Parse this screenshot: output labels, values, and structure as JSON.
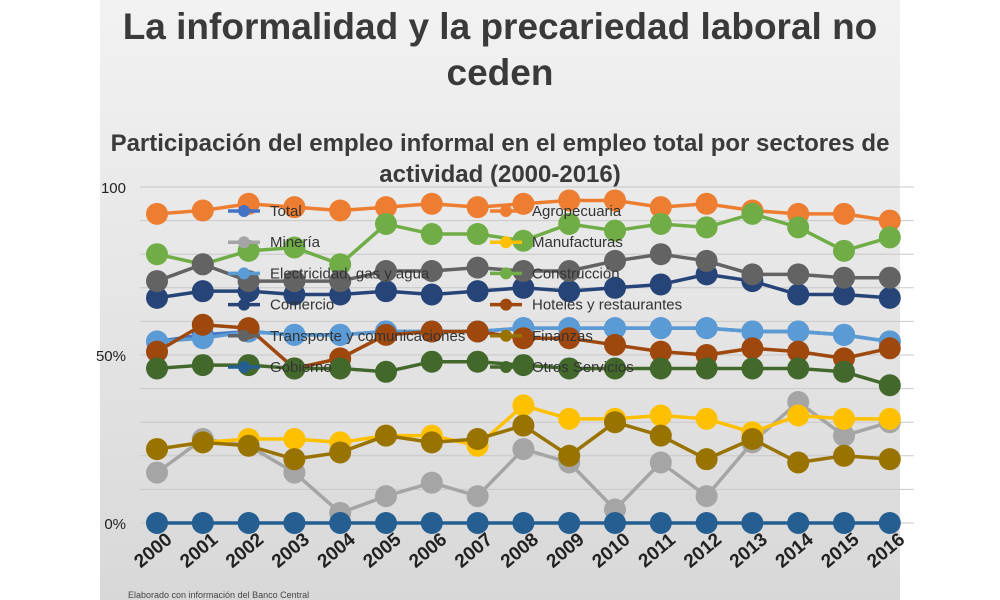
{
  "title_main": "La informalidad y la precariedad laboral no ceden",
  "chart_data": {
    "type": "line",
    "title": "Participación del empleo informal en el empleo total por sectores de actividad (2000-2016)",
    "xlabel": "",
    "ylabel": "",
    "ylim": [
      0,
      100
    ],
    "yticks": [
      "0%",
      "50%",
      "100"
    ],
    "legend": "top-center, two columns",
    "grid": true,
    "x": [
      "2000",
      "2001",
      "2002",
      "2003",
      "2004",
      "2005",
      "2006",
      "2007",
      "2008",
      "2009",
      "2010",
      "2011",
      "2012",
      "2013",
      "2014",
      "2015",
      "2016"
    ],
    "series": [
      {
        "name": "Total",
        "color": "#4472c4",
        "values": [
          54,
          56,
          57,
          56,
          56,
          57,
          57,
          57,
          58,
          58,
          58,
          58,
          58,
          57,
          57,
          56,
          54
        ]
      },
      {
        "name": "Agropecuaria",
        "color": "#ed7d31",
        "values": [
          92,
          93,
          95,
          94,
          93,
          94,
          95,
          94,
          95,
          96,
          96,
          94,
          95,
          93,
          92,
          92,
          90
        ]
      },
      {
        "name": "Minería",
        "color": "#a5a5a5",
        "values": [
          15,
          25,
          23,
          15,
          3,
          8,
          12,
          8,
          22,
          18,
          4,
          18,
          8,
          24,
          36,
          26,
          30
        ]
      },
      {
        "name": "Manufacturas",
        "color": "#ffc000",
        "values": [
          22,
          24,
          25,
          25,
          24,
          26,
          26,
          23,
          35,
          31,
          31,
          32,
          31,
          27,
          32,
          31,
          31
        ]
      },
      {
        "name": "Electricidad, gas y agua",
        "color": "#5b9bd5",
        "values": [
          54,
          55,
          57,
          56,
          56,
          57,
          57,
          57,
          58,
          58,
          58,
          58,
          58,
          57,
          57,
          56,
          54
        ]
      },
      {
        "name": "Construcción",
        "color": "#70ad47",
        "values": [
          80,
          77,
          81,
          82,
          77,
          89,
          86,
          86,
          84,
          89,
          87,
          89,
          88,
          92,
          88,
          81,
          85
        ]
      },
      {
        "name": "Comercio",
        "color": "#264478",
        "values": [
          67,
          69,
          69,
          68,
          68,
          69,
          68,
          69,
          70,
          69,
          70,
          71,
          74,
          72,
          68,
          68,
          67
        ]
      },
      {
        "name": "Hoteles y restaurantes",
        "color": "#9e480e",
        "values": [
          51,
          59,
          58,
          46,
          49,
          56,
          57,
          57,
          55,
          55,
          53,
          51,
          50,
          52,
          51,
          49,
          52
        ]
      },
      {
        "name": "Transporte y comunicaciones",
        "color": "#636363",
        "values": [
          72,
          77,
          72,
          72,
          72,
          75,
          75,
          76,
          75,
          75,
          78,
          80,
          78,
          74,
          74,
          73,
          73
        ]
      },
      {
        "name": "Finanzas",
        "color": "#997300",
        "values": [
          22,
          24,
          23,
          19,
          21,
          26,
          24,
          25,
          29,
          20,
          30,
          26,
          19,
          25,
          18,
          20,
          19
        ]
      },
      {
        "name": "Gobierno",
        "color": "#255e91",
        "values": [
          0,
          0,
          0,
          0,
          0,
          0,
          0,
          0,
          0,
          0,
          0,
          0,
          0,
          0,
          0,
          0,
          0
        ]
      },
      {
        "name": "Otros Servicios",
        "color": "#43682b",
        "values": [
          46,
          47,
          47,
          46,
          46,
          45,
          48,
          48,
          47,
          46,
          46,
          46,
          46,
          46,
          46,
          45,
          41
        ]
      }
    ]
  },
  "footnote": "Elaborado con información del Banco Central"
}
